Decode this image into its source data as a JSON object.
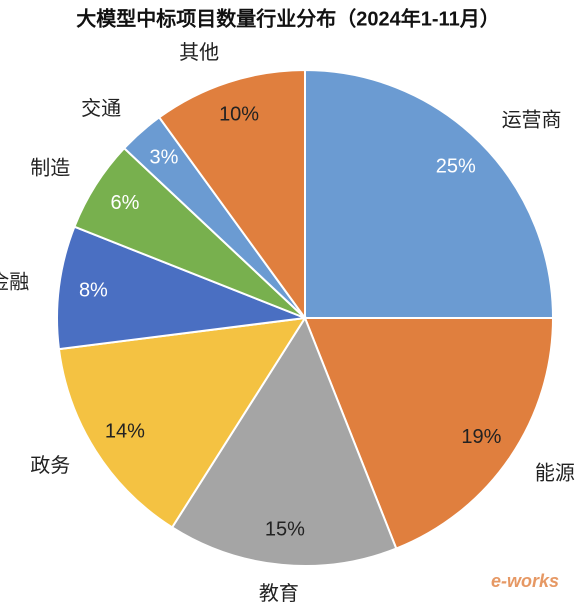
{
  "chart_data": {
    "type": "pie",
    "title": "大模型中标项目数量行业分布（2024年1-11月）",
    "categories": [
      "运营商",
      "能源",
      "教育",
      "政务",
      "金融",
      "制造",
      "交通",
      "其他"
    ],
    "values": [
      25,
      19,
      15,
      14,
      8,
      6,
      3,
      10
    ],
    "value_labels": [
      "25%",
      "19%",
      "15%",
      "14%",
      "8%",
      "6%",
      "3%",
      "10%"
    ],
    "colors": [
      "#6b9bd2",
      "#e07f3e",
      "#a5a5a5",
      "#f4c242",
      "#4a6fc2",
      "#78b04e",
      "#6b9bd2",
      "#e07f3e"
    ],
    "label_colors": [
      "#ffffff",
      "#222222",
      "#222222",
      "#222222",
      "#ffffff",
      "#ffffff",
      "#ffffff",
      "#222222"
    ],
    "watermark": "e-works"
  }
}
